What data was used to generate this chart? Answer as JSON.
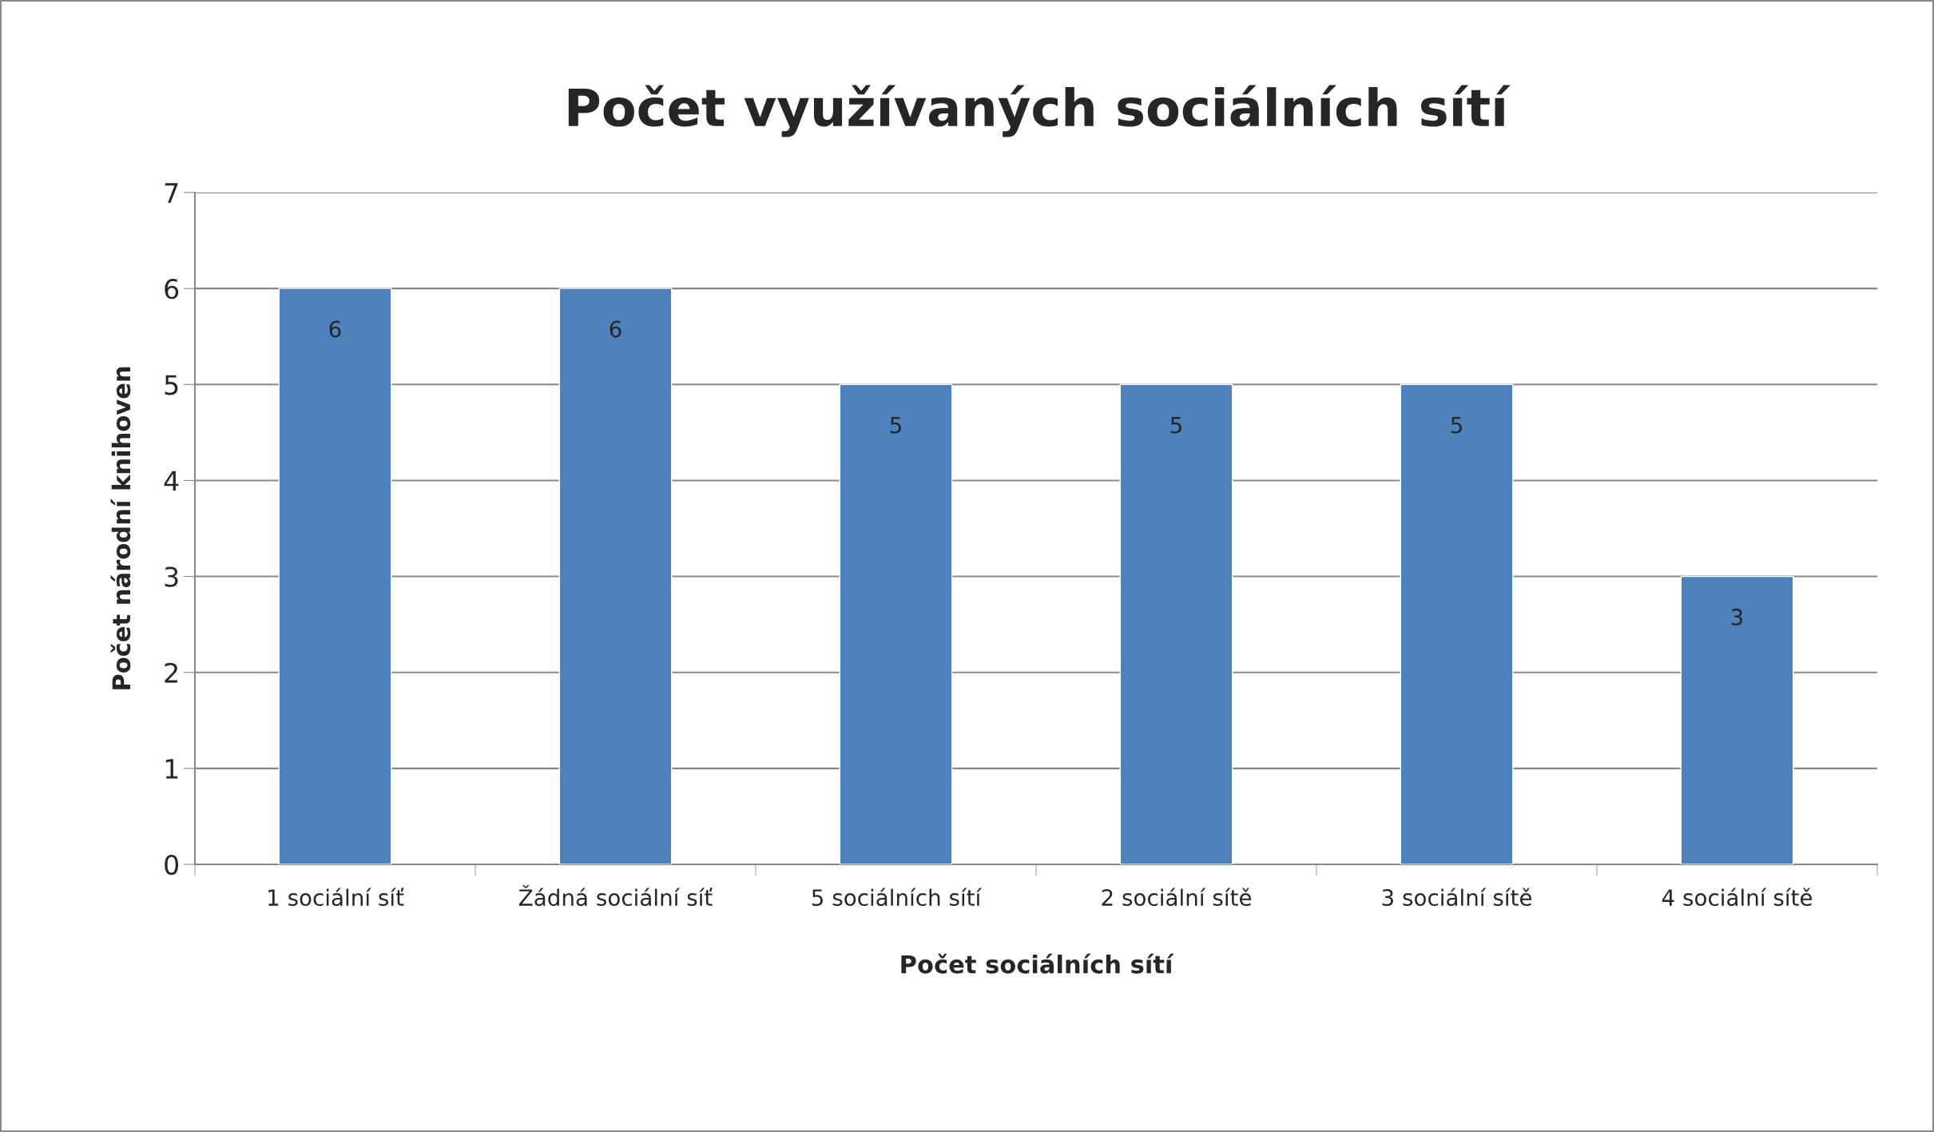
{
  "chart_data": {
    "type": "bar",
    "title": "Počet využívaných sociálních sítí",
    "xlabel": "Počet sociálních sítí",
    "ylabel": "Počet národní knihoven",
    "categories": [
      "1 sociální síť",
      "Žádná sociální síť",
      "5 sociálních sítí",
      "2 sociální sítě",
      "3 sociální sítě",
      "4 sociální sítě"
    ],
    "values": [
      6,
      6,
      5,
      5,
      5,
      3
    ],
    "color": "#4f81bd",
    "ylim": [
      0,
      7
    ],
    "yticks": [
      0,
      1,
      2,
      3,
      4,
      5,
      6,
      7
    ],
    "grid": "y",
    "data_labels": true
  }
}
